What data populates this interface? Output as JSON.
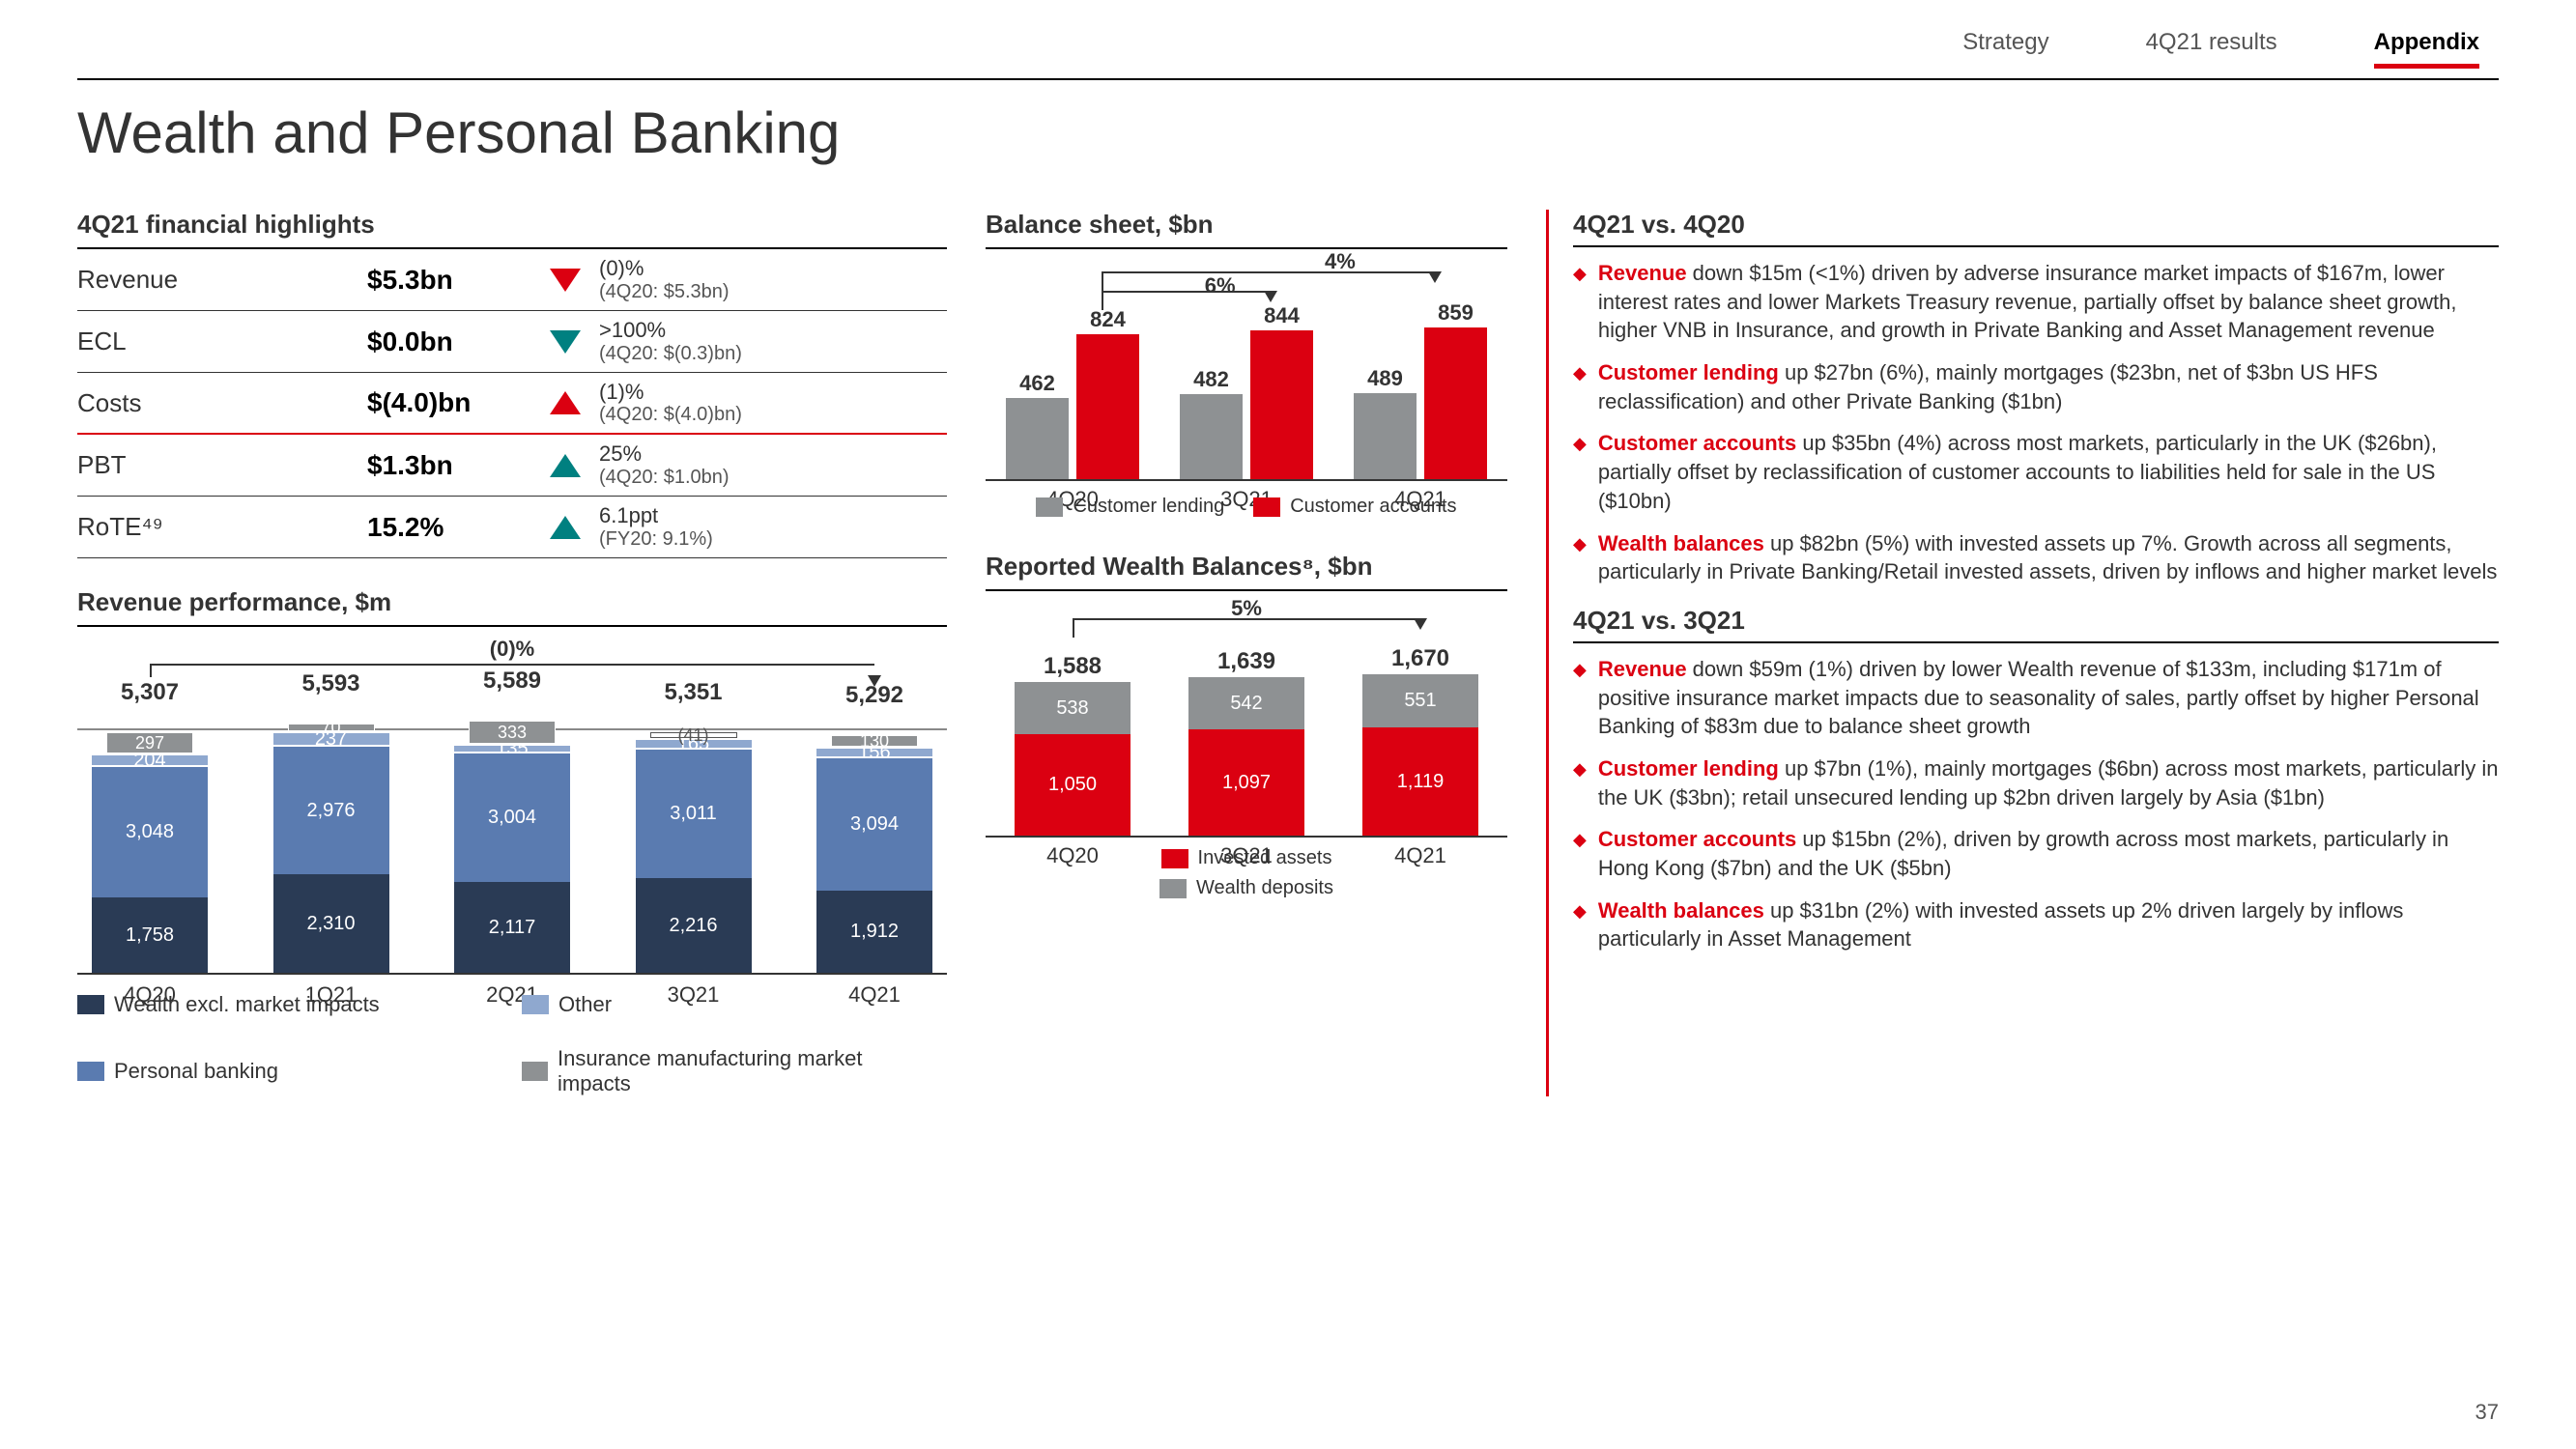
{
  "nav": {
    "items": [
      "Strategy",
      "4Q21 results",
      "Appendix"
    ],
    "activeIndex": 2
  },
  "pageTitle": "Wealth and Personal Banking",
  "pageNumber": "37",
  "colors": {
    "red": "#db0011",
    "teal": "#008080",
    "darkNavy": "#2a3b55",
    "midBlue": "#5a7bb0",
    "lightBlue": "#8fa8cf",
    "grey": "#8e9193"
  },
  "highlights": {
    "title": "4Q21 financial highlights",
    "rows": [
      {
        "label": "Revenue",
        "value": "$5.3bn",
        "arrow": "down-red",
        "note1": "(0)%",
        "note2": "(4Q20: $5.3bn)",
        "redBorder": false
      },
      {
        "label": "ECL",
        "value": "$0.0bn",
        "arrow": "down-teal",
        "note1": ">100%",
        "note2": "(4Q20: $(0.3)bn)",
        "redBorder": false
      },
      {
        "label": "Costs",
        "value": "$(4.0)bn",
        "arrow": "up-red",
        "note1": "(1)%",
        "note2": "(4Q20: $(4.0)bn)",
        "redBorder": true
      },
      {
        "label": "PBT",
        "value": "$1.3bn",
        "arrow": "up-teal",
        "note1": "25%",
        "note2": "(4Q20: $1.0bn)",
        "redBorder": false
      },
      {
        "label": "RoTE⁴⁹",
        "value": "15.2%",
        "arrow": "up-teal",
        "note1": "6.1ppt",
        "note2": "(FY20: 9.1%)",
        "redBorder": false
      }
    ]
  },
  "revPerf": {
    "title": "Revenue performance, $m",
    "bracketLabel": "(0)%",
    "categories": [
      "4Q20",
      "1Q21",
      "2Q21",
      "3Q21",
      "4Q21"
    ],
    "totals": [
      "5,307",
      "5,593",
      "5,589",
      "5,351",
      "5,292"
    ],
    "insurance": [
      {
        "v": "297",
        "neg": false
      },
      {
        "v": "70",
        "neg": false
      },
      {
        "v": "333",
        "neg": false
      },
      {
        "v": "(41)",
        "neg": true
      },
      {
        "v": "130",
        "neg": false
      }
    ],
    "other": [
      "204",
      "237",
      "135",
      "165",
      "156"
    ],
    "personal": [
      "3,048",
      "2,976",
      "3,004",
      "3,011",
      "3,094"
    ],
    "wealth": [
      "1,758",
      "2,310",
      "2,117",
      "2,216",
      "1,912"
    ],
    "legend": [
      {
        "label": "Wealth excl. market impacts",
        "colorKey": "darkNavy"
      },
      {
        "label": "Other",
        "colorKey": "lightBlue"
      },
      {
        "label": "Personal banking",
        "colorKey": "midBlue"
      },
      {
        "label": "Insurance manufacturing market impacts",
        "colorKey": "grey"
      }
    ],
    "heights": {
      "insurance": [
        22,
        8,
        24,
        6,
        12
      ],
      "other": [
        14,
        16,
        10,
        12,
        12
      ],
      "personal": [
        135,
        132,
        133,
        133,
        137
      ],
      "wealth": [
        78,
        102,
        94,
        98,
        85
      ]
    }
  },
  "balanceSheet": {
    "title": "Balance sheet, $bn",
    "brackets": [
      {
        "label": "6%",
        "span": "0-1"
      },
      {
        "label": "4%",
        "span": "0-2"
      }
    ],
    "categories": [
      "4Q20",
      "3Q21",
      "4Q21"
    ],
    "lending": {
      "values": [
        "462",
        "482",
        "489"
      ],
      "heights": [
        84,
        88,
        89
      ],
      "colorKey": "grey"
    },
    "accounts": {
      "values": [
        "824",
        "844",
        "859"
      ],
      "heights": [
        150,
        154,
        157
      ],
      "colorKey": "red"
    },
    "legend": [
      {
        "label": "Customer lending",
        "colorKey": "grey"
      },
      {
        "label": "Customer accounts",
        "colorKey": "red"
      }
    ]
  },
  "wealthBalances": {
    "title": "Reported Wealth Balances⁸, $bn",
    "bracketLabel": "5%",
    "categories": [
      "4Q20",
      "3Q21",
      "4Q21"
    ],
    "totals": [
      "1,588",
      "1,639",
      "1,670"
    ],
    "deposits": {
      "values": [
        "538",
        "542",
        "551"
      ],
      "heights": [
        54,
        54,
        55
      ],
      "colorKey": "grey"
    },
    "invested": {
      "values": [
        "1,050",
        "1,097",
        "1,119"
      ],
      "heights": [
        105,
        110,
        112
      ],
      "colorKey": "red"
    },
    "legend": [
      {
        "label": "Invested assets",
        "colorKey": "red"
      },
      {
        "label": "Wealth deposits",
        "colorKey": "grey"
      }
    ]
  },
  "commentary": {
    "section1": {
      "title": "4Q21 vs. 4Q20",
      "items": [
        {
          "lead": "Revenue",
          "text": " down $15m (<1%) driven by adverse insurance market impacts of $167m, lower interest rates and lower Markets Treasury revenue, partially offset by balance sheet growth, higher VNB in Insurance, and growth in Private Banking and Asset Management revenue"
        },
        {
          "lead": "Customer lending",
          "text": " up $27bn (6%), mainly mortgages ($23bn, net of $3bn US HFS reclassification) and other Private Banking ($1bn)"
        },
        {
          "lead": "Customer accounts",
          "text": " up $35bn (4%) across most markets, particularly in the UK ($26bn), partially offset by reclassification of customer accounts to liabilities held for sale in the US ($10bn)"
        },
        {
          "lead": "Wealth balances",
          "text": " up $82bn (5%) with invested assets up 7%. Growth across all segments, particularly in Private Banking/Retail invested assets, driven by inflows and higher market levels"
        }
      ]
    },
    "section2": {
      "title": "4Q21 vs. 3Q21",
      "items": [
        {
          "lead": "Revenue",
          "text": " down $59m (1%) driven by lower Wealth revenue of $133m, including $171m of positive insurance market impacts due to seasonality of sales, partly offset by higher Personal Banking of $83m due to balance sheet growth"
        },
        {
          "lead": "Customer lending",
          "text": " up $7bn (1%), mainly mortgages ($6bn) across most markets, particularly in the UK ($3bn); retail unsecured lending up $2bn driven largely by Asia ($1bn)"
        },
        {
          "lead": "Customer accounts",
          "text": " up $15bn (2%), driven by growth across most markets, particularly in Hong Kong ($7bn) and the UK ($5bn)"
        },
        {
          "lead": "Wealth balances",
          "text": " up $31bn (2%) with invested assets up 2% driven largely by inflows particularly in Asset Management"
        }
      ]
    }
  }
}
